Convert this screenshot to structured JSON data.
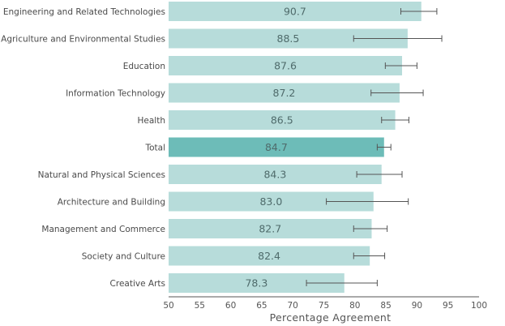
{
  "chart_data": {
    "type": "bar",
    "orientation": "horizontal",
    "categories": [
      "Engineering and Related Technologies",
      "Agriculture and Environmental Studies",
      "Education",
      "Information Technology",
      "Health",
      "Total",
      "Natural and Physical Sciences",
      "Architecture and Building",
      "Management and Commerce",
      "Society and Culture",
      "Creative Arts"
    ],
    "values": [
      90.7,
      88.5,
      87.6,
      87.2,
      86.5,
      84.7,
      84.3,
      83.0,
      82.7,
      82.4,
      78.3
    ],
    "value_labels": [
      "90.7",
      "88.5",
      "87.6",
      "87.2",
      "86.5",
      "84.7",
      "84.3",
      "83.0",
      "82.7",
      "82.4",
      "78.3"
    ],
    "error_low": [
      87.4,
      79.8,
      84.9,
      82.6,
      84.3,
      83.6,
      80.3,
      75.4,
      79.8,
      79.8,
      72.2
    ],
    "error_high": [
      93.2,
      94.0,
      90.0,
      91.0,
      88.7,
      85.8,
      87.6,
      88.6,
      85.2,
      84.8,
      83.6
    ],
    "highlight_category": "Total",
    "xlabel": "Percentage Agreement",
    "ylabel": "",
    "title": "",
    "xlim": [
      50,
      100
    ],
    "xticks": [
      "50",
      "55",
      "60",
      "65",
      "70",
      "75",
      "80",
      "85",
      "90",
      "95",
      "100"
    ],
    "grid": false,
    "legend": "none",
    "colors": {
      "bar": "#b7dcda",
      "highlight_bar": "#6dbcb8",
      "error_bar": "#555555",
      "axis": "#555555"
    }
  }
}
